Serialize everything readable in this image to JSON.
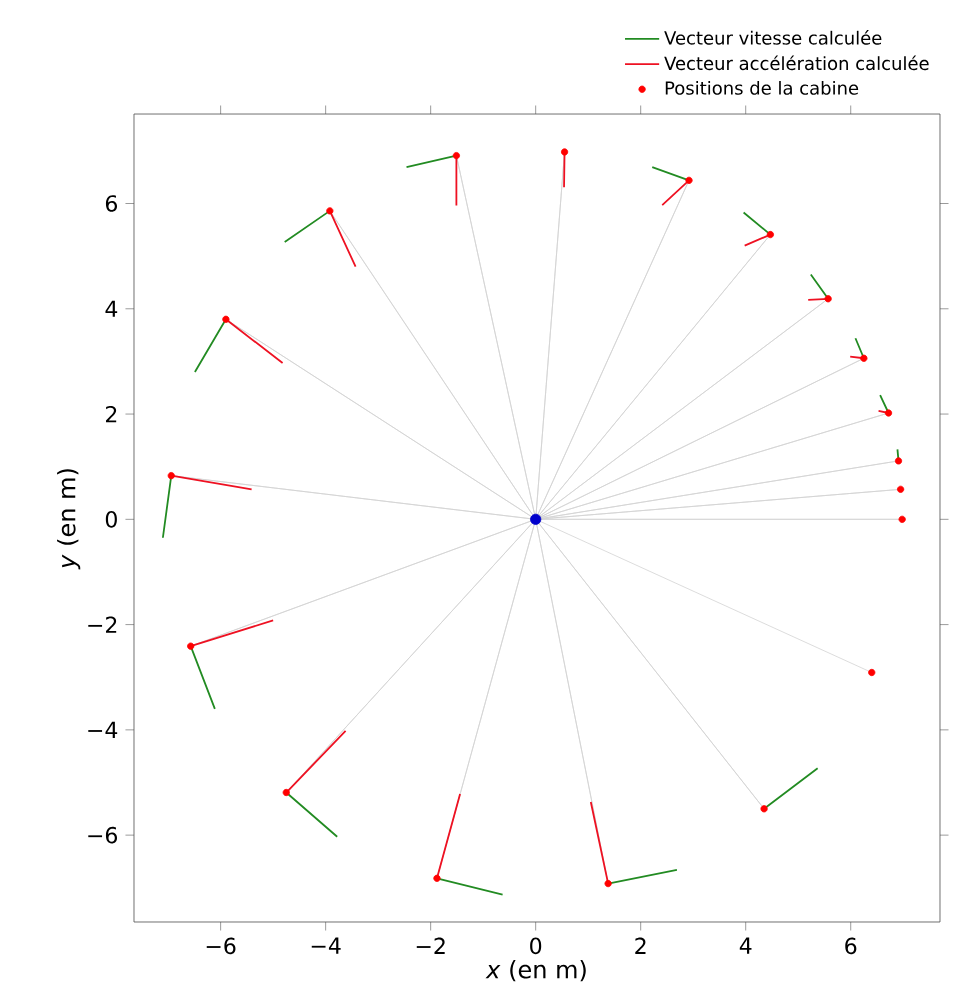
{
  "chart_data": {
    "type": "scatter",
    "xlabel": "*x* (en m)",
    "ylabel": "*y* (en m)",
    "xlim": [
      -7.65,
      7.7
    ],
    "ylim": [
      -7.65,
      7.7
    ],
    "xticks": [
      {
        "value": -6,
        "label": "−6"
      },
      {
        "value": -4,
        "label": "−4"
      },
      {
        "value": -2,
        "label": "−2"
      },
      0,
      2,
      4,
      6
    ],
    "yticks": [
      {
        "value": -6,
        "label": "−6"
      },
      {
        "value": -4,
        "label": "−4"
      },
      {
        "value": -2,
        "label": "−2"
      },
      0,
      2,
      4,
      6
    ],
    "legend": "top right",
    "series": [
      {
        "type": "line",
        "color": "#d3d3d3",
        "marker": "none",
        "x": [
          0,
          6.98,
          0,
          6.95,
          0,
          6.91,
          0,
          6.72,
          0,
          6.25,
          0,
          5.57,
          0,
          4.47,
          0,
          2.92,
          0,
          0.55,
          0,
          -1.51,
          0,
          -3.92,
          0,
          -5.9,
          0,
          -6.94,
          0,
          -6.57,
          0,
          -4.75,
          0,
          -1.88,
          0,
          1.38,
          0,
          4.35,
          0,
          6.4
        ],
        "values": [
          0,
          0.0,
          0,
          0.57,
          0,
          1.11,
          0,
          2.02,
          0,
          3.06,
          0,
          4.19,
          0,
          5.41,
          0,
          6.44,
          0,
          6.98,
          0,
          6.91,
          0,
          5.86,
          0,
          3.8,
          0,
          0.83,
          0,
          -2.41,
          0,
          -5.19,
          0,
          -6.82,
          0,
          -6.92,
          0,
          -5.5,
          0,
          -2.91
        ]
      },
      {
        "type": "line",
        "name": "Vecteur vitesse calculée",
        "color": "#228b22",
        "marker": "none",
        "x": [
          6.91,
          6.89,
          null,
          6.72,
          6.56,
          null,
          6.25,
          6.09,
          null,
          5.57,
          5.24,
          null,
          4.47,
          3.96,
          null,
          2.92,
          2.22,
          null,
          -1.51,
          -2.46,
          null,
          -3.92,
          -4.78,
          null,
          -5.9,
          -6.49,
          null,
          -6.94,
          -7.1,
          null,
          -6.57,
          -6.11,
          null,
          -4.75,
          -3.78,
          null,
          -1.88,
          -0.63,
          null,
          1.38,
          2.69,
          null,
          4.35,
          5.37
        ],
        "values": [
          1.11,
          1.33,
          null,
          2.02,
          2.36,
          null,
          3.06,
          3.44,
          null,
          4.19,
          4.65,
          null,
          5.41,
          5.83,
          null,
          6.44,
          6.69,
          null,
          6.91,
          6.69,
          null,
          5.86,
          5.27,
          null,
          3.8,
          2.8,
          null,
          0.83,
          -0.35,
          null,
          -2.41,
          -3.6,
          null,
          -5.19,
          -6.03,
          null,
          -6.82,
          -7.13,
          null,
          -6.92,
          -6.66,
          null,
          -5.5,
          -4.73
        ]
      },
      {
        "type": "line",
        "name": "Vecteur accélération calculée",
        "color": "#ee1122",
        "marker": "none",
        "x": [
          6.72,
          6.53,
          null,
          6.25,
          5.99,
          null,
          5.57,
          5.19,
          null,
          4.47,
          3.98,
          null,
          2.92,
          2.41,
          null,
          0.55,
          0.54,
          null,
          -1.51,
          -1.51,
          null,
          -3.92,
          -3.43,
          null,
          -5.9,
          -4.82,
          null,
          -6.94,
          -5.41,
          null,
          -6.57,
          -5.0,
          null,
          -4.75,
          -3.62,
          null,
          -1.88,
          -1.44,
          null,
          1.38,
          1.05
        ],
        "values": [
          2.02,
          2.06,
          null,
          3.06,
          3.09,
          null,
          4.19,
          4.17,
          null,
          5.41,
          5.2,
          null,
          6.44,
          5.97,
          null,
          6.98,
          6.31,
          null,
          6.91,
          5.96,
          null,
          5.86,
          4.8,
          null,
          3.8,
          2.97,
          null,
          0.83,
          0.57,
          null,
          -2.41,
          -1.92,
          null,
          -5.19,
          -4.02,
          null,
          -6.82,
          -5.22,
          null,
          -6.92,
          -5.37
        ]
      },
      {
        "name": "Positions de la cabine",
        "color": "#ff0000",
        "marker": "circle",
        "x": [
          6.98,
          6.95,
          6.91,
          6.72,
          6.25,
          5.57,
          4.47,
          2.92,
          0.55,
          -1.51,
          -3.92,
          -5.9,
          -6.94,
          -6.57,
          -4.75,
          -1.88,
          1.38,
          4.35,
          6.4
        ],
        "values": [
          0.0,
          0.57,
          1.11,
          2.02,
          3.06,
          4.19,
          5.41,
          6.44,
          6.98,
          6.91,
          5.86,
          3.8,
          0.83,
          -2.41,
          -5.19,
          -6.82,
          -6.92,
          -5.5,
          -2.91
        ]
      },
      {
        "color": "#0000cc",
        "marker": "circle",
        "x": [
          0
        ],
        "values": [
          0
        ]
      }
    ]
  }
}
